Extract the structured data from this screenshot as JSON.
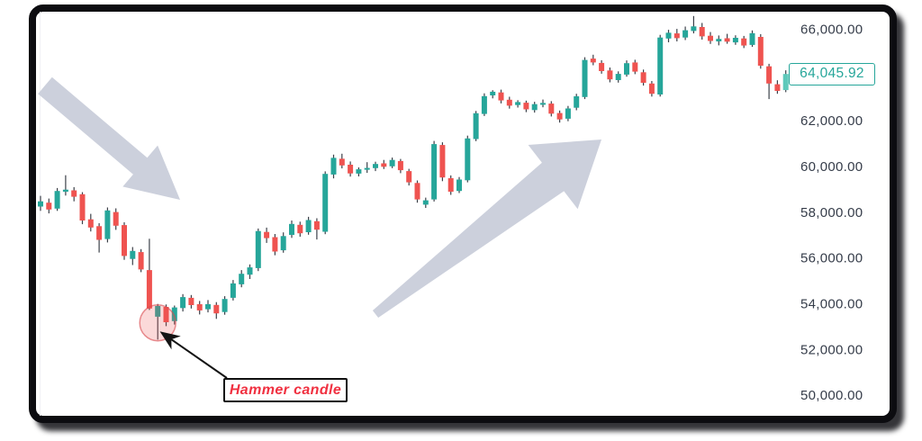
{
  "chart_data": {
    "type": "candlestick",
    "title": "",
    "grid": false,
    "y_axis": {
      "ylim": [
        49100,
        66770
      ],
      "ticks": [
        {
          "value": 66000,
          "label": "66,000.00"
        },
        {
          "value": 62000,
          "label": "62,000.00"
        },
        {
          "value": 60000,
          "label": "60,000.00"
        },
        {
          "value": 58000,
          "label": "58,000.00"
        },
        {
          "value": 56000,
          "label": "56,000.00"
        },
        {
          "value": 54000,
          "label": "54,000.00"
        },
        {
          "value": 52000,
          "label": "52,000.00"
        },
        {
          "value": 50000,
          "label": "50,000.00"
        }
      ]
    },
    "current_price": {
      "value": 64045.92,
      "label": "64,045.92"
    },
    "hammer": {
      "index": 14,
      "label": "Hammer candle"
    },
    "trend_arrows": [
      "downtrend-arrow",
      "uptrend-arrow"
    ],
    "colors": {
      "up": "#26a69a",
      "down": "#ef5350",
      "current": "#5ec9ba",
      "wick": "#3c4049",
      "trend_arrow": "#ccd0dc",
      "annotation_red": "#f03040",
      "price_label": "#26a69a",
      "circle_fill": "rgba(239,83,80,0.22)",
      "circle_stroke": "rgba(217,72,77,0.6)"
    },
    "candles": [
      [
        58250,
        58720,
        58060,
        58480
      ],
      [
        58420,
        58600,
        57950,
        58120
      ],
      [
        58160,
        59060,
        58060,
        58930
      ],
      [
        58900,
        59620,
        58730,
        58990
      ],
      [
        58960,
        59100,
        58480,
        58680
      ],
      [
        58790,
        58880,
        57480,
        57640
      ],
      [
        57690,
        57930,
        57160,
        57330
      ],
      [
        57390,
        57520,
        56240,
        56790
      ],
      [
        56830,
        58210,
        56680,
        58080
      ],
      [
        58010,
        58170,
        57230,
        57410
      ],
      [
        57440,
        57560,
        55920,
        56090
      ],
      [
        55960,
        56480,
        55690,
        56310
      ],
      [
        56260,
        56390,
        55380,
        55500
      ],
      [
        55470,
        56840,
        53730,
        53790
      ],
      [
        53430,
        53990,
        52430,
        53900
      ],
      [
        53860,
        53970,
        53020,
        53190
      ],
      [
        53240,
        53920,
        53090,
        53840
      ],
      [
        53810,
        54420,
        53660,
        54290
      ],
      [
        54260,
        54380,
        53790,
        53940
      ],
      [
        53980,
        54120,
        53530,
        53710
      ],
      [
        53760,
        54160,
        53620,
        53980
      ],
      [
        53950,
        54070,
        53340,
        53580
      ],
      [
        53640,
        54330,
        53520,
        54210
      ],
      [
        54260,
        55040,
        54140,
        54890
      ],
      [
        54850,
        55470,
        54720,
        55310
      ],
      [
        55270,
        55720,
        55080,
        55590
      ],
      [
        55560,
        57290,
        55430,
        57180
      ],
      [
        57140,
        57330,
        56660,
        56870
      ],
      [
        56910,
        57050,
        56120,
        56280
      ],
      [
        56340,
        57120,
        56230,
        56960
      ],
      [
        57010,
        57640,
        56880,
        57490
      ],
      [
        57450,
        57590,
        56930,
        57080
      ],
      [
        57130,
        57800,
        57020,
        57660
      ],
      [
        57610,
        57740,
        56810,
        57240
      ],
      [
        57150,
        59790,
        57040,
        59680
      ],
      [
        59650,
        60520,
        59480,
        60380
      ],
      [
        60340,
        60560,
        59920,
        60050
      ],
      [
        60080,
        60220,
        59560,
        59700
      ],
      [
        59690,
        59960,
        59570,
        59880
      ],
      [
        59860,
        60190,
        59720,
        59940
      ],
      [
        59930,
        60210,
        59800,
        60110
      ],
      [
        60140,
        60290,
        59890,
        59990
      ],
      [
        60010,
        60390,
        59930,
        60290
      ],
      [
        60240,
        60330,
        59710,
        59840
      ],
      [
        59800,
        59900,
        59170,
        59310
      ],
      [
        59280,
        59390,
        58420,
        58560
      ],
      [
        58330,
        58640,
        58190,
        58520
      ],
      [
        58560,
        61120,
        58470,
        60980
      ],
      [
        60940,
        61060,
        59360,
        59520
      ],
      [
        59490,
        59610,
        58760,
        58900
      ],
      [
        58930,
        59540,
        58840,
        59430
      ],
      [
        59400,
        61350,
        59310,
        61230
      ],
      [
        61200,
        62430,
        61110,
        62330
      ],
      [
        62300,
        63200,
        62210,
        63080
      ],
      [
        63110,
        63340,
        62980,
        63270
      ],
      [
        63240,
        63360,
        62760,
        62890
      ],
      [
        62920,
        63050,
        62530,
        62660
      ],
      [
        62690,
        62900,
        62580,
        62820
      ],
      [
        62790,
        62880,
        62380,
        62500
      ],
      [
        62470,
        62830,
        62360,
        62730
      ],
      [
        62700,
        62930,
        62590,
        62780
      ],
      [
        62750,
        62860,
        62190,
        62310
      ],
      [
        62340,
        62450,
        61920,
        62060
      ],
      [
        62090,
        62650,
        61980,
        62540
      ],
      [
        62570,
        63180,
        62460,
        63070
      ],
      [
        63040,
        64780,
        62950,
        64660
      ],
      [
        64720,
        64890,
        64430,
        64550
      ],
      [
        64530,
        64650,
        64060,
        64170
      ],
      [
        64200,
        64330,
        63680,
        63810
      ],
      [
        63780,
        64160,
        63670,
        64050
      ],
      [
        64020,
        64640,
        63930,
        64520
      ],
      [
        64550,
        64670,
        64040,
        64150
      ],
      [
        64120,
        64240,
        63540,
        63660
      ],
      [
        63630,
        63740,
        63060,
        63180
      ],
      [
        63150,
        65760,
        63060,
        65640
      ],
      [
        65600,
        65980,
        65430,
        65850
      ],
      [
        65820,
        66020,
        65470,
        65610
      ],
      [
        65640,
        66120,
        65530,
        65960
      ],
      [
        65930,
        66580,
        65820,
        66130
      ],
      [
        66100,
        66280,
        65550,
        65690
      ],
      [
        65720,
        65880,
        65360,
        65490
      ],
      [
        65470,
        65730,
        65300,
        65580
      ],
      [
        65610,
        65800,
        65370,
        65460
      ],
      [
        65430,
        65740,
        65320,
        65630
      ],
      [
        65600,
        65710,
        65180,
        65290
      ],
      [
        65320,
        65950,
        65230,
        65830
      ],
      [
        65670,
        65790,
        64280,
        64410
      ],
      [
        64380,
        64490,
        62950,
        63630
      ],
      [
        63600,
        63770,
        63180,
        63310
      ],
      [
        63340,
        64210,
        63250,
        64045.92
      ]
    ]
  }
}
